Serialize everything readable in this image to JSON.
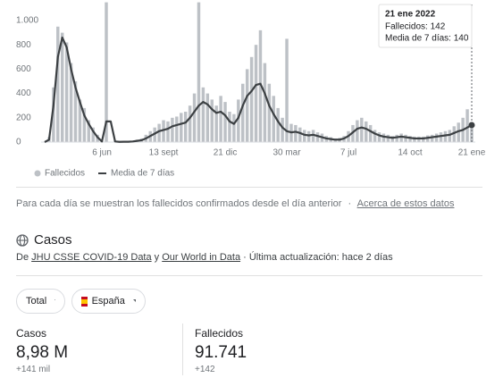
{
  "chart_data": {
    "type": "bar-line",
    "categories": [
      null,
      null,
      null,
      null,
      null,
      null,
      null,
      null,
      null,
      null,
      null,
      null,
      null,
      "6 jun",
      null,
      null,
      null,
      null,
      null,
      null,
      null,
      null,
      null,
      null,
      null,
      null,
      null,
      "13 sept",
      null,
      null,
      null,
      null,
      null,
      null,
      null,
      null,
      null,
      null,
      null,
      null,
      null,
      "21 dic",
      null,
      null,
      null,
      null,
      null,
      null,
      null,
      null,
      null,
      null,
      null,
      null,
      null,
      "30 mar",
      null,
      null,
      null,
      null,
      null,
      null,
      null,
      null,
      null,
      null,
      null,
      null,
      null,
      "7 jul",
      null,
      null,
      null,
      null,
      null,
      null,
      null,
      null,
      null,
      null,
      null,
      null,
      null,
      "14 oct",
      null,
      null,
      null,
      null,
      null,
      null,
      null,
      null,
      null,
      null,
      null,
      null,
      null,
      "21 ene"
    ],
    "series": [
      {
        "name": "Fallecidos",
        "color": "#bdc1c6",
        "values": [
          0,
          40,
          450,
          950,
          900,
          820,
          650,
          500,
          350,
          280,
          180,
          120,
          60,
          10,
          1150,
          0,
          10,
          5,
          5,
          8,
          10,
          20,
          30,
          60,
          90,
          120,
          150,
          180,
          170,
          200,
          210,
          240,
          250,
          300,
          400,
          1150,
          450,
          400,
          350,
          300,
          380,
          330,
          250,
          230,
          350,
          480,
          600,
          700,
          800,
          920,
          650,
          480,
          380,
          280,
          200,
          850,
          150,
          140,
          120,
          100,
          90,
          100,
          80,
          70,
          50,
          40,
          30,
          35,
          50,
          90,
          140,
          180,
          200,
          170,
          140,
          100,
          80,
          70,
          60,
          50,
          60,
          70,
          60,
          50,
          45,
          45,
          45,
          55,
          60,
          70,
          80,
          90,
          100,
          130,
          160,
          200,
          270,
          142
        ]
      },
      {
        "name": "Media de 7 días",
        "color": "#3c4043",
        "values": [
          0,
          20,
          300,
          700,
          860,
          780,
          600,
          450,
          330,
          220,
          150,
          90,
          40,
          5,
          170,
          170,
          5,
          2,
          3,
          3,
          5,
          10,
          15,
          30,
          50,
          70,
          90,
          100,
          110,
          130,
          140,
          150,
          160,
          200,
          250,
          300,
          330,
          310,
          270,
          240,
          250,
          220,
          170,
          150,
          200,
          300,
          380,
          420,
          470,
          480,
          400,
          300,
          230,
          170,
          120,
          90,
          80,
          85,
          75,
          60,
          55,
          60,
          50,
          40,
          30,
          25,
          20,
          20,
          30,
          50,
          80,
          110,
          120,
          110,
          90,
          70,
          55,
          45,
          40,
          35,
          40,
          45,
          40,
          35,
          30,
          30,
          30,
          35,
          40,
          45,
          50,
          55,
          60,
          75,
          90,
          100,
          120,
          140
        ]
      }
    ],
    "ylim": [
      0,
      1000
    ],
    "yticks": [
      0,
      200,
      400,
      600,
      800,
      {
        "value": 1000,
        "label": "1.000"
      }
    ],
    "grid": false,
    "tooltip": {
      "title": "21 ene 2022",
      "lines": [
        "Fallecidos: 142",
        "Media de 7 días: 140"
      ]
    }
  },
  "note": {
    "text": "Para cada día se muestran los fallecidos confirmados desde el día anterior",
    "sep": "·",
    "link": "Acerca de estos datos"
  },
  "section": {
    "title": "Casos",
    "source_prefix": "De",
    "source1": "JHU CSSE COVID-19 Data",
    "and": "y",
    "source2": "Our World in Data",
    "updated": "· Última actualización: hace 2 días"
  },
  "filters": [
    "Total",
    "España"
  ],
  "stats": [
    {
      "label": "Casos",
      "value": "8,98 M",
      "delta": "+141 mil"
    },
    {
      "label": "Fallecidos",
      "value": "91.741",
      "delta": "+142"
    }
  ]
}
